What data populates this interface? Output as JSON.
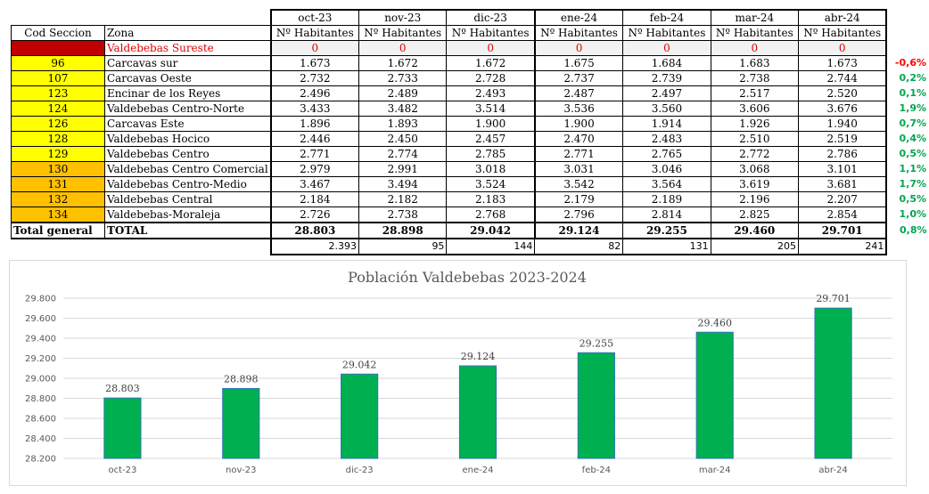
{
  "table": {
    "months": [
      "oct-23",
      "nov-23",
      "dic-23",
      "ene-24",
      "feb-24",
      "mar-24",
      "abr-24"
    ],
    "header_cod": "Cod Seccion",
    "header_zona": "Zona",
    "header_hab": "Nº Habitantes",
    "rows": [
      {
        "cod": "31",
        "zona": "Valdebebas Sureste",
        "values": [
          "0",
          "0",
          "0",
          "0",
          "0",
          "0",
          "0"
        ],
        "pct": "",
        "style": "red"
      },
      {
        "cod": "96",
        "zona": "Carcavas sur",
        "values": [
          "1.673",
          "1.672",
          "1.672",
          "1.675",
          "1.684",
          "1.683",
          "1.673"
        ],
        "pct": "-0,6%",
        "style": "yellow"
      },
      {
        "cod": "107",
        "zona": "Carcavas Oeste",
        "values": [
          "2.732",
          "2.733",
          "2.728",
          "2.737",
          "2.739",
          "2.738",
          "2.744"
        ],
        "pct": "0,2%",
        "style": "yellow"
      },
      {
        "cod": "123",
        "zona": "Encinar de los Reyes",
        "values": [
          "2.496",
          "2.489",
          "2.493",
          "2.487",
          "2.497",
          "2.517",
          "2.520"
        ],
        "pct": "0,1%",
        "style": "yellow"
      },
      {
        "cod": "124",
        "zona": "Valdebebas Centro-Norte",
        "values": [
          "3.433",
          "3.482",
          "3.514",
          "3.536",
          "3.560",
          "3.606",
          "3.676"
        ],
        "pct": "1,9%",
        "style": "yellow"
      },
      {
        "cod": "126",
        "zona": "Carcavas Este",
        "values": [
          "1.896",
          "1.893",
          "1.900",
          "1.900",
          "1.914",
          "1.926",
          "1.940"
        ],
        "pct": "0,7%",
        "style": "yellow"
      },
      {
        "cod": "128",
        "zona": "Valdebebas Hocico",
        "values": [
          "2.446",
          "2.450",
          "2.457",
          "2.470",
          "2.483",
          "2.510",
          "2.519"
        ],
        "pct": "0,4%",
        "style": "yellow"
      },
      {
        "cod": "129",
        "zona": "Valdebebas Centro",
        "values": [
          "2.771",
          "2.774",
          "2.785",
          "2.771",
          "2.765",
          "2.772",
          "2.786"
        ],
        "pct": "0,5%",
        "style": "yellow"
      },
      {
        "cod": "130",
        "zona": "Valdebebas Centro Comercial",
        "values": [
          "2.979",
          "2.991",
          "3.018",
          "3.031",
          "3.046",
          "3.068",
          "3.101"
        ],
        "pct": "1,1%",
        "style": "orange"
      },
      {
        "cod": "131",
        "zona": "Valdebebas Centro-Medio",
        "values": [
          "3.467",
          "3.494",
          "3.524",
          "3.542",
          "3.564",
          "3.619",
          "3.681"
        ],
        "pct": "1,7%",
        "style": "orange"
      },
      {
        "cod": "132",
        "zona": "Valdebebas Central",
        "values": [
          "2.184",
          "2.182",
          "2.183",
          "2.179",
          "2.189",
          "2.196",
          "2.207"
        ],
        "pct": "0,5%",
        "style": "orange"
      },
      {
        "cod": "134",
        "zona": "Valdebebas-Moraleja",
        "values": [
          "2.726",
          "2.738",
          "2.768",
          "2.796",
          "2.814",
          "2.825",
          "2.854"
        ],
        "pct": "1,0%",
        "style": "orange"
      }
    ],
    "total": {
      "cod": "Total general",
      "zona": "TOTAL",
      "values": [
        "28.803",
        "28.898",
        "29.042",
        "29.124",
        "29.255",
        "29.460",
        "29.701"
      ],
      "pct": "0,8%"
    },
    "diffs": [
      "2.393",
      "95",
      "144",
      "82",
      "131",
      "205",
      "241"
    ]
  },
  "chart_data": {
    "type": "bar",
    "title": "Población Valdebebas 2023-2024",
    "categories": [
      "oct-23",
      "nov-23",
      "dic-23",
      "ene-24",
      "feb-24",
      "mar-24",
      "abr-24"
    ],
    "values": [
      28803,
      28898,
      29042,
      29124,
      29255,
      29460,
      29701
    ],
    "data_labels": [
      "28.803",
      "28.898",
      "29.042",
      "29.124",
      "29.255",
      "29.460",
      "29.701"
    ],
    "ylim": [
      28200,
      29800
    ],
    "yticks": [
      28200,
      28400,
      28600,
      28800,
      29000,
      29200,
      29400,
      29600,
      29800
    ],
    "ytick_labels": [
      "28.200",
      "28.400",
      "28.600",
      "28.800",
      "29.000",
      "29.200",
      "29.400",
      "29.600",
      "29.800"
    ],
    "xlabel": "",
    "ylabel": "",
    "grid": true,
    "bar_color": "#00b050",
    "bar_edge_color": "#2e75b6"
  }
}
